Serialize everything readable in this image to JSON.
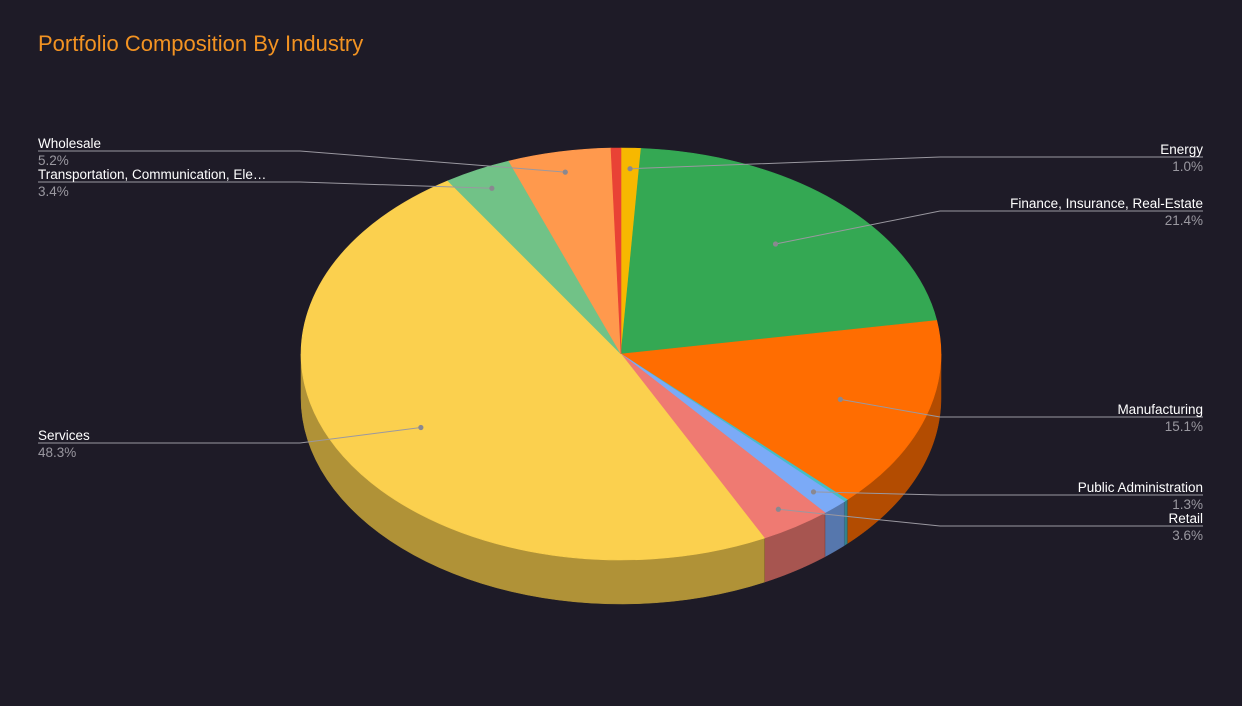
{
  "chart_data": {
    "type": "pie",
    "title": "Portfolio Composition By Industry",
    "is_3d": true,
    "legend": "none",
    "label_style": "outside leader-line labels",
    "slices": [
      {
        "label": "Energy",
        "value": 1.0,
        "pct_label": "1.0%",
        "color": "#f7b800",
        "side": "right"
      },
      {
        "label": "Finance, Insurance, Real-Estate",
        "value": 21.4,
        "pct_label": "21.4%",
        "color": "#34a853",
        "side": "right"
      },
      {
        "label": "Manufacturing",
        "value": 15.1,
        "pct_label": "15.1%",
        "color": "#ff6d01",
        "side": "right"
      },
      {
        "label": "",
        "value": 0.2,
        "pct_label": "",
        "color": "#46bdc6",
        "side": "none"
      },
      {
        "label": "Public Administration",
        "value": 1.3,
        "pct_label": "1.3%",
        "color": "#7baaf7",
        "side": "right"
      },
      {
        "label": "Retail",
        "value": 3.6,
        "pct_label": "3.6%",
        "color": "#ef7a72",
        "side": "right"
      },
      {
        "label": "Services",
        "value": 48.3,
        "pct_label": "48.3%",
        "color": "#fbd04e",
        "side": "left"
      },
      {
        "label": "Transportation, Communication, Ele…",
        "value": 3.4,
        "pct_label": "3.4%",
        "color": "#71c287",
        "side": "left"
      },
      {
        "label": "Wholesale",
        "value": 5.2,
        "pct_label": "5.2%",
        "color": "#ff994d",
        "side": "left"
      },
      {
        "label": "",
        "value": 0.5,
        "pct_label": "",
        "color": "#e94235",
        "side": "none"
      }
    ]
  }
}
